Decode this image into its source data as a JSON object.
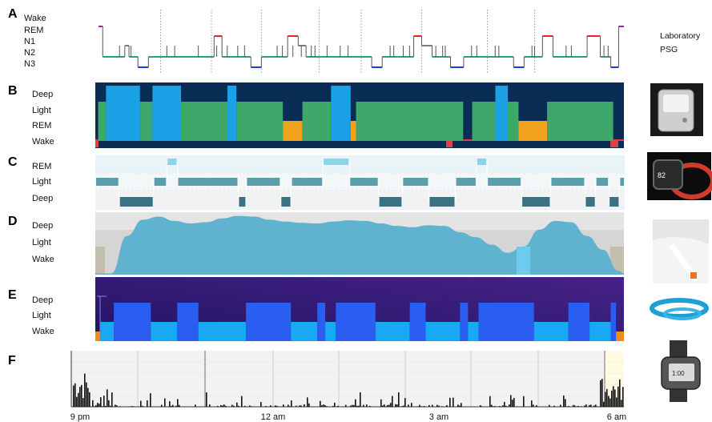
{
  "chart_data": [
    {
      "panel": "A",
      "type": "line",
      "ylabels": [
        "Wake",
        "REM",
        "N1",
        "N2",
        "N3"
      ],
      "side_label": [
        "Laboratory",
        "PSG"
      ],
      "x_range": [
        0,
        10
      ],
      "series": {
        "segments": [
          {
            "from": 0.0,
            "to": 0.08,
            "stage": "Wake"
          },
          {
            "from": 0.08,
            "to": 0.5,
            "stage": "N2"
          },
          {
            "from": 0.5,
            "to": 0.58,
            "stage": "N1"
          },
          {
            "from": 0.58,
            "to": 0.75,
            "stage": "N2"
          },
          {
            "from": 0.75,
            "to": 0.95,
            "stage": "N3"
          },
          {
            "from": 0.95,
            "to": 1.55,
            "stage": "N2"
          },
          {
            "from": 1.55,
            "to": 1.75,
            "stage": "N2"
          },
          {
            "from": 1.75,
            "to": 2.2,
            "stage": "N2"
          },
          {
            "from": 2.2,
            "to": 2.35,
            "stage": "REM"
          },
          {
            "from": 2.35,
            "to": 2.6,
            "stage": "N2"
          },
          {
            "from": 2.6,
            "to": 2.9,
            "stage": "N2"
          },
          {
            "from": 2.9,
            "to": 3.1,
            "stage": "N3"
          },
          {
            "from": 3.1,
            "to": 3.3,
            "stage": "N2"
          },
          {
            "from": 3.3,
            "to": 3.6,
            "stage": "N2"
          },
          {
            "from": 3.6,
            "to": 3.8,
            "stage": "REM"
          },
          {
            "from": 3.8,
            "to": 3.95,
            "stage": "N1"
          },
          {
            "from": 3.95,
            "to": 4.25,
            "stage": "N2"
          },
          {
            "from": 4.25,
            "to": 4.5,
            "stage": "N2"
          },
          {
            "from": 4.5,
            "to": 4.9,
            "stage": "N2"
          },
          {
            "from": 4.9,
            "to": 5.2,
            "stage": "N2"
          },
          {
            "from": 5.2,
            "to": 5.4,
            "stage": "N3"
          },
          {
            "from": 5.4,
            "to": 5.7,
            "stage": "N2"
          },
          {
            "from": 5.7,
            "to": 6.0,
            "stage": "N2"
          },
          {
            "from": 6.0,
            "to": 6.15,
            "stage": "REM"
          },
          {
            "from": 6.15,
            "to": 6.35,
            "stage": "N1"
          },
          {
            "from": 6.35,
            "to": 6.7,
            "stage": "N2"
          },
          {
            "from": 6.7,
            "to": 6.95,
            "stage": "N3"
          },
          {
            "from": 6.95,
            "to": 7.4,
            "stage": "N2"
          },
          {
            "from": 7.4,
            "to": 7.7,
            "stage": "N2"
          },
          {
            "from": 7.7,
            "to": 7.9,
            "stage": "N2"
          },
          {
            "from": 7.9,
            "to": 8.1,
            "stage": "N3"
          },
          {
            "from": 8.1,
            "to": 8.45,
            "stage": "N2"
          },
          {
            "from": 8.45,
            "to": 8.65,
            "stage": "REM"
          },
          {
            "from": 8.65,
            "to": 9.1,
            "stage": "N2"
          },
          {
            "from": 9.1,
            "to": 9.3,
            "stage": "N2"
          },
          {
            "from": 9.3,
            "to": 9.55,
            "stage": "REM"
          },
          {
            "from": 9.55,
            "to": 9.75,
            "stage": "N2"
          },
          {
            "from": 9.75,
            "to": 9.9,
            "stage": "N3"
          },
          {
            "from": 9.9,
            "to": 10.0,
            "stage": "Wake"
          }
        ]
      },
      "colors": {
        "Wake": "#8b2f8b",
        "REM": "#e8232a",
        "N1": "#7d7d7d",
        "N2": "#2a9d8f",
        "N3": "#1c3fcf"
      }
    },
    {
      "panel": "B",
      "type": "bar",
      "ylabels": [
        "Deep",
        "Light",
        "REM",
        "Wake"
      ],
      "x_range": [
        0,
        10
      ],
      "series": [
        {
          "from": 0.0,
          "to": 0.08,
          "stage": "Wake"
        },
        {
          "from": 0.08,
          "to": 0.3,
          "stage": "Light"
        },
        {
          "from": 0.3,
          "to": 1.25,
          "stage": "Deep"
        },
        {
          "from": 1.25,
          "to": 1.6,
          "stage": "Light"
        },
        {
          "from": 1.6,
          "to": 2.4,
          "stage": "Deep"
        },
        {
          "from": 2.4,
          "to": 3.7,
          "stage": "Light"
        },
        {
          "from": 3.7,
          "to": 3.95,
          "stage": "Deep"
        },
        {
          "from": 3.95,
          "to": 5.25,
          "stage": "Light"
        },
        {
          "from": 5.25,
          "to": 5.8,
          "stage": "REM"
        },
        {
          "from": 5.8,
          "to": 6.6,
          "stage": "Light"
        },
        {
          "from": 6.6,
          "to": 7.15,
          "stage": "Deep"
        },
        {
          "from": 7.15,
          "to": 7.3,
          "stage": "REM"
        },
        {
          "from": 7.3,
          "to": 10.3,
          "stage": "Light"
        },
        {
          "from": 10.3,
          "to": 10.55,
          "stage": "Wake"
        },
        {
          "from": 10.55,
          "to": 11.2,
          "stage": "Light"
        },
        {
          "from": 11.2,
          "to": 11.55,
          "stage": "Deep"
        },
        {
          "from": 11.55,
          "to": 11.85,
          "stage": "Light"
        },
        {
          "from": 11.85,
          "to": 12.65,
          "stage": "REM"
        },
        {
          "from": 12.65,
          "to": 14.5,
          "stage": "Light"
        },
        {
          "from": 14.5,
          "to": 14.8,
          "stage": "Wake"
        }
      ],
      "colors": {
        "Deep": "#1aa1e6",
        "Light": "#3ea86a",
        "REM": "#f0a21c",
        "Wake": "#e04040",
        "bg": "#0a2d55"
      }
    },
    {
      "panel": "C",
      "type": "bar",
      "ylabels": [
        "REM",
        "Light",
        "Deep"
      ],
      "x_range": [
        0,
        10
      ],
      "series": [
        {
          "from": 0.0,
          "to": 0.45,
          "stage": "Light"
        },
        {
          "from": 0.45,
          "to": 1.1,
          "stage": "Deep"
        },
        {
          "from": 1.1,
          "to": 1.35,
          "stage": "Light"
        },
        {
          "from": 1.35,
          "to": 1.55,
          "stage": "REM"
        },
        {
          "from": 1.55,
          "to": 2.7,
          "stage": "Light"
        },
        {
          "from": 2.7,
          "to": 2.85,
          "stage": "Deep"
        },
        {
          "from": 2.85,
          "to": 3.5,
          "stage": "Light"
        },
        {
          "from": 3.5,
          "to": 3.7,
          "stage": "Deep"
        },
        {
          "from": 3.7,
          "to": 4.3,
          "stage": "Light"
        },
        {
          "from": 4.3,
          "to": 4.8,
          "stage": "REM"
        },
        {
          "from": 4.8,
          "to": 5.35,
          "stage": "Light"
        },
        {
          "from": 5.35,
          "to": 5.8,
          "stage": "Deep"
        },
        {
          "from": 5.8,
          "to": 6.3,
          "stage": "Light"
        },
        {
          "from": 6.3,
          "to": 6.8,
          "stage": "Deep"
        },
        {
          "from": 6.8,
          "to": 7.2,
          "stage": "Light"
        },
        {
          "from": 7.2,
          "to": 7.4,
          "stage": "REM"
        },
        {
          "from": 7.4,
          "to": 8.05,
          "stage": "Light"
        },
        {
          "from": 8.05,
          "to": 8.6,
          "stage": "Deep"
        },
        {
          "from": 8.6,
          "to": 9.25,
          "stage": "Light"
        },
        {
          "from": 9.25,
          "to": 9.45,
          "stage": "Deep"
        },
        {
          "from": 9.45,
          "to": 9.7,
          "stage": "Light"
        },
        {
          "from": 9.7,
          "to": 9.9,
          "stage": "Deep"
        },
        {
          "from": 9.9,
          "to": 10.0,
          "stage": "Light"
        }
      ],
      "colors": {
        "REM": "#8fd3ea",
        "Light": "#5b9fae",
        "Deep": "#3a7283",
        "bgTop": "#e8f4f8",
        "bgMid": "#f4f7f8",
        "bgBot": "#f0f2f3"
      }
    },
    {
      "panel": "D",
      "type": "area",
      "ylabels": [
        "Deep",
        "Light",
        "Wake"
      ],
      "x": [
        0,
        0.3,
        0.6,
        0.9,
        1.2,
        1.5,
        1.8,
        2.1,
        2.4,
        2.7,
        3.0,
        3.3,
        3.6,
        3.9,
        4.2,
        4.5,
        4.8,
        5.1,
        5.4,
        5.7,
        6.0,
        6.3,
        6.6,
        6.9,
        7.2,
        7.5,
        7.8,
        8.1,
        8.4,
        8.7,
        9.0,
        9.3,
        9.6,
        9.9,
        10.0
      ],
      "values": [
        0.02,
        0.02,
        0.62,
        0.88,
        0.93,
        0.86,
        0.82,
        0.84,
        0.9,
        0.94,
        0.93,
        0.88,
        0.85,
        0.83,
        0.82,
        0.85,
        0.87,
        0.86,
        0.82,
        0.78,
        0.76,
        0.79,
        0.78,
        0.68,
        0.6,
        0.48,
        0.35,
        0.45,
        0.72,
        0.86,
        0.84,
        0.62,
        0.4,
        0.06,
        0.02
      ],
      "colors": {
        "fill": "#5fb3cf",
        "bg": "#d5d5d5",
        "edge": "#c2bfae",
        "highlight": "#6ccbee"
      }
    },
    {
      "panel": "E",
      "type": "bar",
      "ylabels": [
        "Deep",
        "Light",
        "Wake"
      ],
      "x_range": [
        0,
        10
      ],
      "series": [
        {
          "from": 0.0,
          "to": 0.1,
          "stage": "Wake"
        },
        {
          "from": 0.1,
          "to": 0.35,
          "stage": "Light"
        },
        {
          "from": 0.35,
          "to": 1.05,
          "stage": "Deep"
        },
        {
          "from": 1.05,
          "to": 1.55,
          "stage": "Light"
        },
        {
          "from": 1.55,
          "to": 1.95,
          "stage": "Deep"
        },
        {
          "from": 1.95,
          "to": 2.85,
          "stage": "Light"
        },
        {
          "from": 2.85,
          "to": 3.7,
          "stage": "Deep"
        },
        {
          "from": 3.7,
          "to": 4.2,
          "stage": "Light"
        },
        {
          "from": 4.2,
          "to": 4.35,
          "stage": "Deep"
        },
        {
          "from": 4.35,
          "to": 4.55,
          "stage": "Light"
        },
        {
          "from": 4.55,
          "to": 5.3,
          "stage": "Deep"
        },
        {
          "from": 5.3,
          "to": 5.95,
          "stage": "Light"
        },
        {
          "from": 5.95,
          "to": 6.25,
          "stage": "Deep"
        },
        {
          "from": 6.25,
          "to": 6.9,
          "stage": "Light"
        },
        {
          "from": 6.9,
          "to": 7.05,
          "stage": "Deep"
        },
        {
          "from": 7.05,
          "to": 7.25,
          "stage": "Light"
        },
        {
          "from": 7.25,
          "to": 8.3,
          "stage": "Deep"
        },
        {
          "from": 8.3,
          "to": 8.95,
          "stage": "Light"
        },
        {
          "from": 8.95,
          "to": 9.35,
          "stage": "Deep"
        },
        {
          "from": 9.35,
          "to": 9.75,
          "stage": "Light"
        },
        {
          "from": 9.75,
          "to": 9.85,
          "stage": "Deep"
        },
        {
          "from": 9.85,
          "to": 10.0,
          "stage": "Wake"
        }
      ],
      "colors": {
        "Deep": "#2a5ef0",
        "Light": "#18a9f5",
        "Wake": "#f08a1a",
        "bgTop": "#3b1a7a",
        "bgBot": "#1a1060"
      }
    },
    {
      "panel": "F",
      "type": "bar",
      "xlabels": [
        "9 pm",
        "12 am",
        "3 am",
        "6 am"
      ],
      "x_range": [
        0,
        10
      ],
      "colors": {
        "bar": "#111111",
        "bg": "#f2f2f2",
        "grid": "#cccccc",
        "yellow": "#fffbe3"
      }
    }
  ],
  "panel_letters": [
    "A",
    "B",
    "C",
    "D",
    "E",
    "F"
  ],
  "labels": {
    "A": [
      "Wake",
      "REM",
      "N1",
      "N2",
      "N3"
    ],
    "B": [
      "Deep",
      "Light",
      "REM",
      "Wake"
    ],
    "C": [
      "REM",
      "Light",
      "Deep"
    ],
    "D": [
      "Deep",
      "Light",
      "Wake"
    ],
    "E": [
      "Deep",
      "Light",
      "Wake"
    ],
    "side": [
      "Laboratory",
      "PSG"
    ],
    "xaxis": [
      "9 pm",
      "12 am",
      "3 am",
      "6 am"
    ]
  },
  "device_icons": [
    "polysomnography-device-icon",
    "wrist-device-icon",
    "watch-device-icon",
    "bed-sensor-icon",
    "band-device-icon",
    "actigraph-watch-icon"
  ]
}
